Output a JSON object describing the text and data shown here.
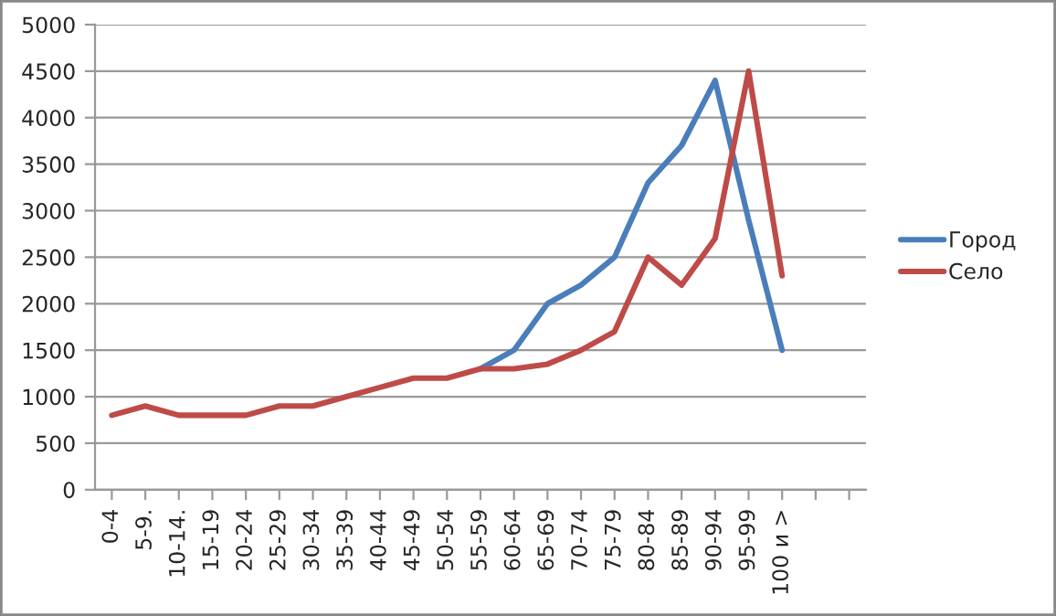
{
  "chart_data": {
    "type": "line",
    "categories": [
      "0-4",
      "5-9.",
      "10-14.",
      "15-19",
      "20-24",
      "25-29",
      "30-34",
      "35-39",
      "40-44",
      "45-49",
      "50-54",
      "55-59",
      "60-64",
      "65-69",
      "70-74",
      "75-79",
      "80-84",
      "85-89",
      "90-94",
      "95-99",
      "100 и >",
      null,
      null
    ],
    "series": [
      {
        "name": "Город",
        "color": "#4a7ebb",
        "values": [
          null,
          null,
          null,
          null,
          null,
          null,
          null,
          null,
          null,
          null,
          null,
          1300,
          1500,
          2000,
          2200,
          2500,
          3300,
          3700,
          4400,
          2900,
          1500,
          null,
          null
        ]
      },
      {
        "name": "Село",
        "color": "#be4b48",
        "values": [
          800,
          900,
          800,
          800,
          800,
          900,
          900,
          1000,
          1100,
          1200,
          1200,
          1300,
          1300,
          1350,
          1500,
          1700,
          2500,
          2200,
          2700,
          4500,
          2300,
          null,
          null
        ]
      }
    ],
    "ylim": [
      0,
      5000
    ],
    "yticks": [
      0,
      500,
      1000,
      1500,
      2000,
      2500,
      3000,
      3500,
      4000,
      4500,
      5000
    ],
    "grid": "y",
    "legend": "right",
    "marker": "none",
    "line_style": "solid"
  }
}
